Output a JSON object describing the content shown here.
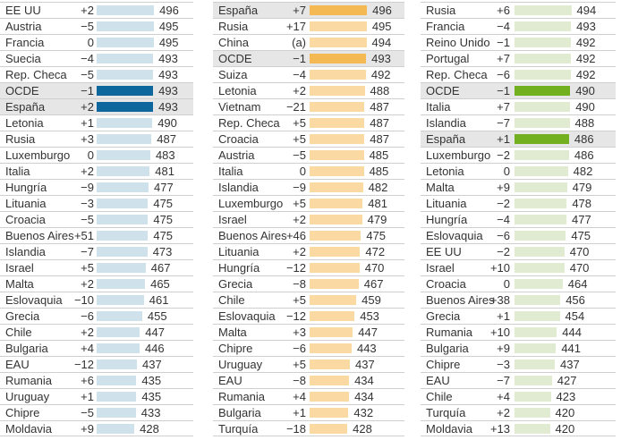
{
  "chart_data": {
    "type": "bar",
    "title": "",
    "panels": [
      {
        "name": "panel-1",
        "color_light": "#cfe1eb",
        "color_highlight": "#0e679c",
        "rows": [
          {
            "country": "EE UU",
            "change": "+2",
            "score": 496
          },
          {
            "country": "Austria",
            "change": "−5",
            "score": 495
          },
          {
            "country": "Francia",
            "change": "0",
            "score": 495
          },
          {
            "country": "Suecia",
            "change": "−4",
            "score": 493
          },
          {
            "country": "Rep. Checa",
            "change": "−5",
            "score": 493
          },
          {
            "country": "OCDE",
            "change": "−1",
            "score": 493,
            "highlight": true
          },
          {
            "country": "España",
            "change": "+2",
            "score": 493,
            "highlight": true
          },
          {
            "country": "Letonia",
            "change": "+1",
            "score": 490
          },
          {
            "country": "Rusia",
            "change": "+3",
            "score": 487
          },
          {
            "country": "Luxemburgo",
            "change": "0",
            "score": 483
          },
          {
            "country": "Italia",
            "change": "+2",
            "score": 481
          },
          {
            "country": "Hungría",
            "change": "−9",
            "score": 477
          },
          {
            "country": "Lituania",
            "change": "−3",
            "score": 475
          },
          {
            "country": "Croacia",
            "change": "−5",
            "score": 475
          },
          {
            "country": "Buenos Aires",
            "change": "+51",
            "score": 475
          },
          {
            "country": "Islandia",
            "change": "−7",
            "score": 473
          },
          {
            "country": "Israel",
            "change": "+5",
            "score": 467
          },
          {
            "country": "Malta",
            "change": "+2",
            "score": 465
          },
          {
            "country": "Eslovaquia",
            "change": "−10",
            "score": 461
          },
          {
            "country": "Grecia",
            "change": "−6",
            "score": 455
          },
          {
            "country": "Chile",
            "change": "+2",
            "score": 447
          },
          {
            "country": "Bulgaria",
            "change": "+4",
            "score": 446
          },
          {
            "country": "EAU",
            "change": "−12",
            "score": 437
          },
          {
            "country": "Rumania",
            "change": "+6",
            "score": 435
          },
          {
            "country": "Uruguay",
            "change": "+1",
            "score": 435
          },
          {
            "country": "Chipre",
            "change": "−5",
            "score": 433
          },
          {
            "country": "Moldavia",
            "change": "+9",
            "score": 428
          }
        ]
      },
      {
        "name": "panel-2",
        "color_light": "#fbd9a2",
        "color_highlight": "#f5b954",
        "rows": [
          {
            "country": "España",
            "change": "+7",
            "score": 496,
            "highlight": true
          },
          {
            "country": "Rusia",
            "change": "+17",
            "score": 495
          },
          {
            "country": "China",
            "change": "(a)",
            "score": 494
          },
          {
            "country": "OCDE",
            "change": "−1",
            "score": 493,
            "highlight": true
          },
          {
            "country": "Suiza",
            "change": "−4",
            "score": 492
          },
          {
            "country": "Letonia",
            "change": "+2",
            "score": 488
          },
          {
            "country": "Vietnam",
            "change": "−21",
            "score": 487
          },
          {
            "country": "Rep. Checa",
            "change": "+5",
            "score": 487
          },
          {
            "country": "Croacia",
            "change": "+5",
            "score": 487
          },
          {
            "country": "Austria",
            "change": "−5",
            "score": 485
          },
          {
            "country": "Italia",
            "change": "0",
            "score": 485
          },
          {
            "country": "Islandia",
            "change": "−9",
            "score": 482
          },
          {
            "country": "Luxemburgo",
            "change": "+5",
            "score": 481
          },
          {
            "country": "Israel",
            "change": "+2",
            "score": 479
          },
          {
            "country": "Buenos Aires",
            "change": "+46",
            "score": 475
          },
          {
            "country": "Lituania",
            "change": "+2",
            "score": 472
          },
          {
            "country": "Hungría",
            "change": "−12",
            "score": 470
          },
          {
            "country": "Grecia",
            "change": "−8",
            "score": 467
          },
          {
            "country": "Chile",
            "change": "+5",
            "score": 459
          },
          {
            "country": "Eslovaquia",
            "change": "−12",
            "score": 453
          },
          {
            "country": "Malta",
            "change": "+3",
            "score": 447
          },
          {
            "country": "Chipre",
            "change": "−6",
            "score": 443
          },
          {
            "country": "Uruguay",
            "change": "+5",
            "score": 437
          },
          {
            "country": "EAU",
            "change": "−8",
            "score": 434
          },
          {
            "country": "Rumania",
            "change": "+4",
            "score": 434
          },
          {
            "country": "Bulgaria",
            "change": "+1",
            "score": 432
          },
          {
            "country": "Turquía",
            "change": "−18",
            "score": 428
          }
        ]
      },
      {
        "name": "panel-3",
        "color_light": "#e0ebd1",
        "color_highlight": "#72b020",
        "rows": [
          {
            "country": "Rusia",
            "change": "+6",
            "score": 494
          },
          {
            "country": "Francia",
            "change": "−4",
            "score": 493
          },
          {
            "country": "Reino Unido",
            "change": "−1",
            "score": 492
          },
          {
            "country": "Portugal",
            "change": "+7",
            "score": 492
          },
          {
            "country": "Rep. Checa",
            "change": "−6",
            "score": 492
          },
          {
            "country": "OCDE",
            "change": "−1",
            "score": 490,
            "highlight": true
          },
          {
            "country": "Italia",
            "change": "+7",
            "score": 490
          },
          {
            "country": "Islandia",
            "change": "−7",
            "score": 488
          },
          {
            "country": "España",
            "change": "+1",
            "score": 486,
            "highlight": true
          },
          {
            "country": "Luxemburgo",
            "change": "−2",
            "score": 486
          },
          {
            "country": "Letonia",
            "change": "0",
            "score": 482
          },
          {
            "country": "Malta",
            "change": "+9",
            "score": 479
          },
          {
            "country": "Lituania",
            "change": "−2",
            "score": 478
          },
          {
            "country": "Hungría",
            "change": "−4",
            "score": 477
          },
          {
            "country": "Eslovaquia",
            "change": "−6",
            "score": 475
          },
          {
            "country": "EE UU",
            "change": "−2",
            "score": 470
          },
          {
            "country": "Israel",
            "change": "+10",
            "score": 470
          },
          {
            "country": "Croacia",
            "change": "0",
            "score": 464
          },
          {
            "country": "Buenos Aires",
            "change": "+38",
            "score": 456
          },
          {
            "country": "Grecia",
            "change": "+1",
            "score": 454
          },
          {
            "country": "Rumania",
            "change": "+10",
            "score": 444
          },
          {
            "country": "Bulgaria",
            "change": "+9",
            "score": 441
          },
          {
            "country": "Chipre",
            "change": "−3",
            "score": 437
          },
          {
            "country": "EAU",
            "change": "−7",
            "score": 427
          },
          {
            "country": "Chile",
            "change": "+4",
            "score": 423
          },
          {
            "country": "Turquía",
            "change": "+2",
            "score": 420
          },
          {
            "country": "Moldavia",
            "change": "+13",
            "score": 420
          }
        ]
      }
    ]
  }
}
